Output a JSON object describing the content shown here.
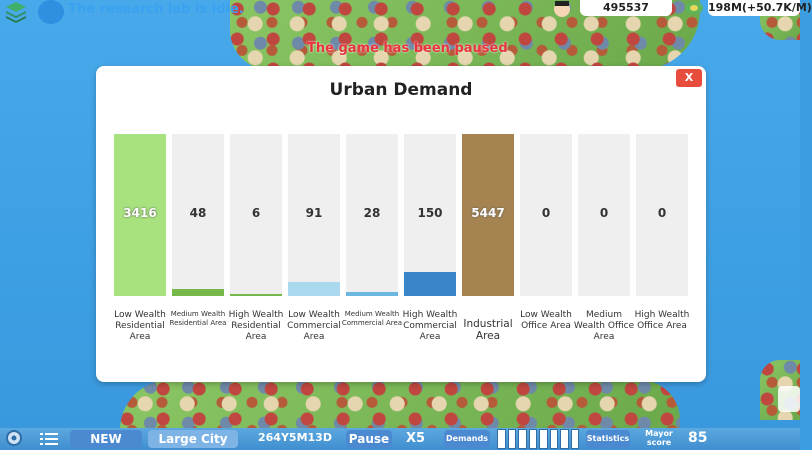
{
  "hud": {
    "research_status": "The research lab is idle.",
    "paused_message": "The game has been paused",
    "population": "495537",
    "money": "198M(+50.7K/M)"
  },
  "modal": {
    "title": "Urban Demand",
    "close_label": "X"
  },
  "chart_data": {
    "type": "bar",
    "title": "Urban Demand",
    "categories": [
      "Low Wealth Residential Area",
      "Medium Wealth Residential Area",
      "High Wealth Residential Area",
      "Low Wealth Commercial Area",
      "Medium Wealth Commercial Area",
      "High Wealth Commercial Area",
      "Industrial Area",
      "Low Wealth Office Area",
      "Medium Wealth Office Area",
      "High Wealth Office Area"
    ],
    "values": [
      3416,
      48,
      6,
      91,
      28,
      150,
      5447,
      0,
      0,
      0
    ],
    "fill_levels": [
      1.0,
      0.045,
      0.01,
      0.085,
      0.025,
      0.15,
      1.0,
      0,
      0,
      0
    ],
    "colors": [
      "#a8e27f",
      "#77b84b",
      "#77b84b",
      "#a9d8ef",
      "#6ab8e0",
      "#3a84c9",
      "#a58452",
      "#efefef",
      "#efefef",
      "#efefef"
    ]
  },
  "bottom_bar": {
    "new_label": "NEW",
    "city_size": "Large City",
    "game_date": "264Y5M13D",
    "pause_label": "Pause",
    "speed_label": "X5",
    "demands_label": "Demands",
    "statistics_label": "Statistics",
    "mayor_label": "Mayor score",
    "mayor_score": "85"
  }
}
